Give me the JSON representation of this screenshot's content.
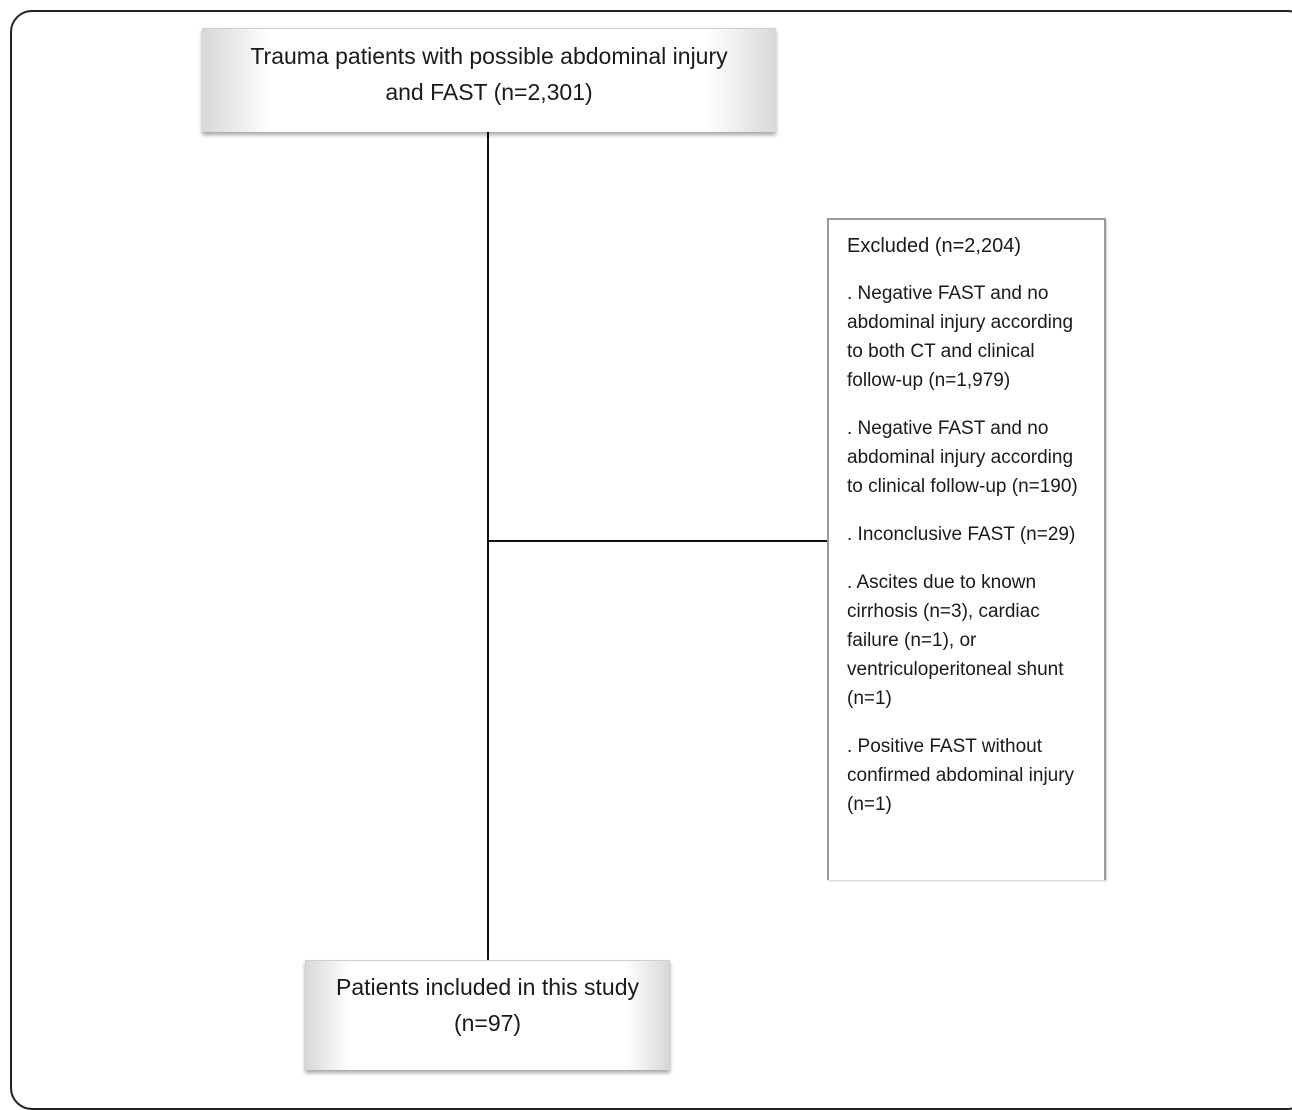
{
  "flowchart": {
    "top_box": {
      "line1": "Trauma patients with possible abdominal injury",
      "line2": "and FAST (n=2,301)"
    },
    "excluded_box": {
      "title": "Excluded (n=2,204)",
      "items": [
        ". Negative FAST and no abdominal injury according to both CT and clinical follow-up (n=1,979)",
        ". Negative FAST and no abdominal injury according to clinical follow-up (n=190)",
        ". Inconclusive FAST (n=29)",
        ". Ascites due to known cirrhosis (n=3), cardiac failure (n=1), or ventriculoperitoneal shunt (n=1)",
        ". Positive FAST without confirmed abdominal injury (n=1)"
      ]
    },
    "bottom_box": {
      "line1": "Patients included in this study",
      "line2": "(n=97)"
    }
  }
}
